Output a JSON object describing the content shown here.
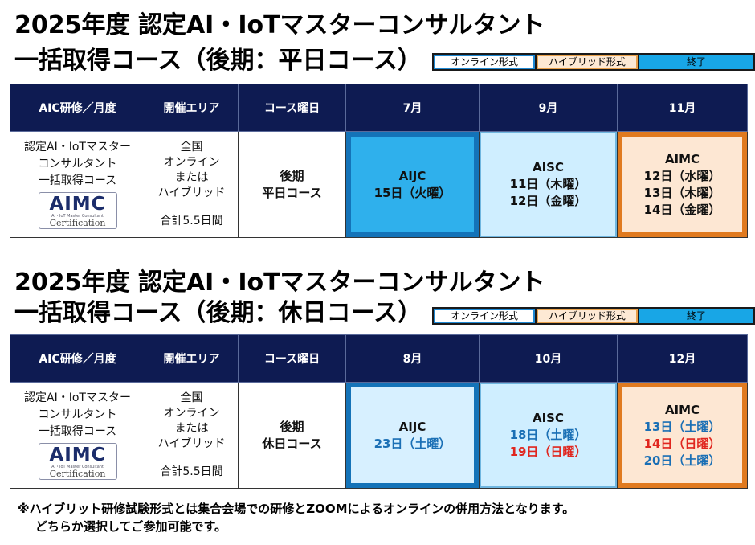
{
  "weekday": {
    "title_line1": "2025年度 認定AI・IoTマスターコンサルタント",
    "title_line2": "一括取得コース（後期：平日コース）",
    "legend": {
      "online": "オンライン形式",
      "hybrid": "ハイブリッド形式",
      "done": "終了"
    },
    "headers": [
      "AIC研修／月度",
      "開催エリア",
      "コース曜日",
      "7月",
      "9月",
      "11月"
    ],
    "course_name": [
      "認定AI・IoTマスター",
      "コンサルタント",
      "一括取得コース"
    ],
    "area": [
      "全国",
      "オンライン",
      "または",
      "ハイブリッド"
    ],
    "total": "合計5.5日間",
    "course_day": [
      "後期",
      "平日コース"
    ],
    "aijc": {
      "name": "AIJC",
      "dates": [
        "15日（火曜）"
      ]
    },
    "aisc": {
      "name": "AISC",
      "dates": [
        "11日（木曜）",
        "12日（金曜）"
      ]
    },
    "aimc": {
      "name": "AIMC",
      "dates": [
        "12日（水曜）",
        "13日（木曜）",
        "14日（金曜）"
      ]
    }
  },
  "holiday": {
    "title_line1": "2025年度 認定AI・IoTマスターコンサルタント",
    "title_line2": "一括取得コース（後期：休日コース）",
    "legend": {
      "online": "オンライン形式",
      "hybrid": "ハイブリッド形式",
      "done": "終了"
    },
    "headers": [
      "AIC研修／月度",
      "開催エリア",
      "コース曜日",
      "8月",
      "10月",
      "12月"
    ],
    "course_name": [
      "認定AI・IoTマスター",
      "コンサルタント",
      "一括取得コース"
    ],
    "area": [
      "全国",
      "オンライン",
      "または",
      "ハイブリッド"
    ],
    "total": "合計5.5日間",
    "course_day": [
      "後期",
      "休日コース"
    ],
    "aijc": {
      "name": "AIJC",
      "dates": [
        "23日（土曜）"
      ]
    },
    "aisc": {
      "name": "AISC",
      "dates": [
        "18日（土曜）",
        "19日（日曜）"
      ]
    },
    "aimc": {
      "name": "AIMC",
      "dates": [
        "13日（土曜）",
        "14日（日曜）",
        "20日（土曜）"
      ]
    }
  },
  "logo": {
    "mark": "AIMC",
    "sub": "AI・IoT Master Consultant",
    "cert": "Certification"
  },
  "colors": {
    "header_bg": "#0e1b52",
    "online_border": "#1473b8",
    "online_fill": "#2fb0ec",
    "hybrid_border": "#e07a1f",
    "hybrid_fill": "#fde7d3",
    "saturday_text": "#1a6fb5",
    "sunday_text": "#e0261f"
  },
  "footnote": {
    "line1": "※ハイブリット研修試験形式とは集合会場での研修とZOOMによるオンラインの併用方法となります。",
    "line2": "どちらか選択してご参加可能です。"
  }
}
